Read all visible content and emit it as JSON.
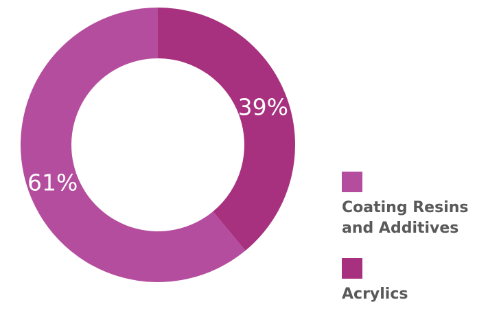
{
  "chart_data": {
    "type": "pie",
    "donut": true,
    "categories": [
      "Acrylics",
      "Coating Resins and Additives"
    ],
    "values": [
      39,
      61
    ],
    "labels": [
      "39%",
      "61%"
    ],
    "colors": [
      "#A7307F",
      "#B44D9E"
    ],
    "legend_position": "right",
    "start_angle_deg": 0,
    "direction": "clockwise"
  },
  "legend": {
    "items": [
      {
        "label": "Coating Resins and Additives",
        "color": "#B44D9E"
      },
      {
        "label": "Acrylics",
        "color": "#A7307F"
      }
    ]
  }
}
